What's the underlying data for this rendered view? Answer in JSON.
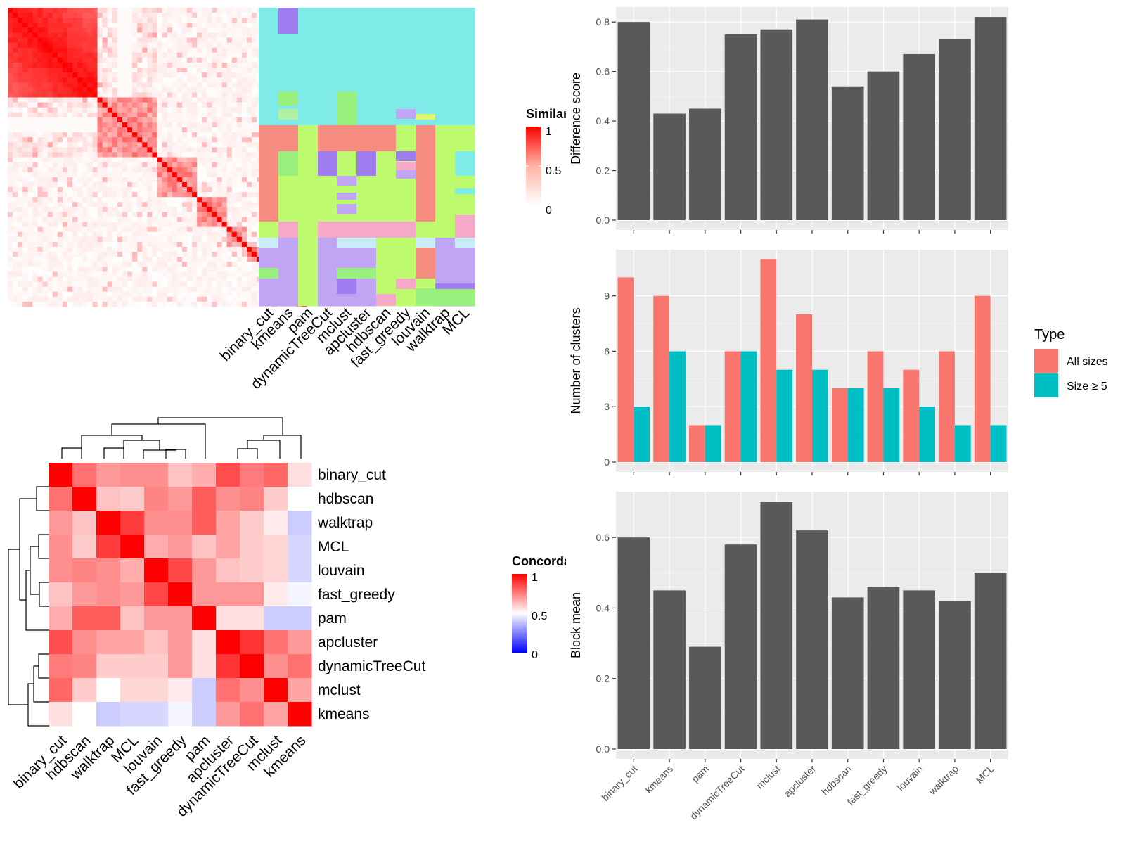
{
  "methods_order": [
    "binary_cut",
    "kmeans",
    "pam",
    "dynamicTreeCut",
    "mclust",
    "apcluster",
    "hdbscan",
    "fast_greedy",
    "louvain",
    "walktrap",
    "MCL"
  ],
  "similarity_heatmap": {
    "legend_title": "Similarity",
    "legend_ticks": [
      "1",
      "0.5",
      "0"
    ],
    "column_labels": [
      "binary_cut",
      "kmeans",
      "pam",
      "dynamicTreeCut",
      "mclust",
      "apcluster",
      "hdbscan",
      "fast_greedy",
      "louvain",
      "walktrap",
      "MCL"
    ]
  },
  "concordance_heatmap": {
    "legend_title": "Concordance",
    "legend_ticks": [
      "1",
      "0.5",
      "0"
    ],
    "row_labels": [
      "binary_cut",
      "hdbscan",
      "walktrap",
      "MCL",
      "louvain",
      "fast_greedy",
      "pam",
      "apcluster",
      "dynamicTreeCut",
      "mclust",
      "kmeans"
    ],
    "col_labels": [
      "binary_cut",
      "hdbscan",
      "walktrap",
      "MCL",
      "louvain",
      "fast_greedy",
      "pam",
      "apcluster",
      "dynamicTreeCut",
      "mclust",
      "kmeans"
    ],
    "values": [
      [
        1.0,
        0.78,
        0.7,
        0.72,
        0.72,
        0.62,
        0.66,
        0.85,
        0.76,
        0.8,
        0.56
      ],
      [
        0.78,
        1.0,
        0.62,
        0.6,
        0.74,
        0.7,
        0.82,
        0.72,
        0.74,
        0.6,
        0.5
      ],
      [
        0.7,
        0.62,
        1.0,
        0.88,
        0.72,
        0.72,
        0.82,
        0.68,
        0.6,
        0.54,
        0.4
      ],
      [
        0.72,
        0.6,
        0.88,
        1.0,
        0.66,
        0.7,
        0.62,
        0.68,
        0.6,
        0.58,
        0.42
      ],
      [
        0.72,
        0.74,
        0.72,
        0.66,
        1.0,
        0.86,
        0.7,
        0.62,
        0.6,
        0.58,
        0.42
      ],
      [
        0.62,
        0.7,
        0.72,
        0.7,
        0.86,
        1.0,
        0.7,
        0.7,
        0.7,
        0.54,
        0.48
      ],
      [
        0.66,
        0.82,
        0.82,
        0.62,
        0.7,
        0.7,
        1.0,
        0.56,
        0.56,
        0.4,
        0.4
      ],
      [
        0.85,
        0.72,
        0.68,
        0.68,
        0.62,
        0.7,
        0.56,
        1.0,
        0.9,
        0.78,
        0.7
      ],
      [
        0.76,
        0.74,
        0.6,
        0.6,
        0.6,
        0.7,
        0.56,
        0.9,
        1.0,
        0.72,
        0.78
      ],
      [
        0.8,
        0.6,
        0.5,
        0.58,
        0.58,
        0.54,
        0.4,
        0.78,
        0.72,
        1.0,
        0.68
      ],
      [
        0.56,
        0.5,
        0.4,
        0.42,
        0.42,
        0.48,
        0.4,
        0.7,
        0.78,
        0.68,
        1.0
      ]
    ]
  },
  "type_legend": {
    "title": "Type",
    "items": [
      {
        "label": "All sizes",
        "color": "#F8766D"
      },
      {
        "label": "Size ≥ 5",
        "color": "#00BFC4"
      }
    ]
  },
  "chart_data": [
    {
      "type": "bar",
      "categories": [
        "binary_cut",
        "kmeans",
        "pam",
        "dynamicTreeCut",
        "mclust",
        "apcluster",
        "hdbscan",
        "fast_greedy",
        "louvain",
        "walktrap",
        "MCL"
      ],
      "values": [
        0.8,
        0.43,
        0.45,
        0.75,
        0.77,
        0.81,
        0.54,
        0.6,
        0.67,
        0.73,
        0.82
      ],
      "ylabel": "Difference score",
      "xlabel": "",
      "ylim": [
        0,
        0.86
      ],
      "yticks": [
        "0.0",
        "0.2",
        "0.4",
        "0.6",
        "0.8"
      ],
      "ytick_values": [
        0,
        0.2,
        0.4,
        0.6,
        0.8
      ],
      "bar_color": "#595959"
    },
    {
      "type": "bar",
      "categories": [
        "binary_cut",
        "kmeans",
        "pam",
        "dynamicTreeCut",
        "mclust",
        "apcluster",
        "hdbscan",
        "fast_greedy",
        "louvain",
        "walktrap",
        "MCL"
      ],
      "series": [
        {
          "name": "All sizes",
          "values": [
            10,
            9,
            2,
            6,
            11,
            8,
            4,
            6,
            5,
            6,
            9
          ],
          "color": "#F8766D"
        },
        {
          "name": "Size ≥ 5",
          "values": [
            3,
            6,
            2,
            6,
            5,
            5,
            4,
            4,
            3,
            2,
            2
          ],
          "color": "#00BFC4"
        }
      ],
      "ylabel": "Number of clusters",
      "xlabel": "",
      "ylim": [
        0,
        11.5
      ],
      "yticks": [
        "0",
        "3",
        "6",
        "9"
      ],
      "ytick_values": [
        0,
        3,
        6,
        9
      ]
    },
    {
      "type": "bar",
      "categories": [
        "binary_cut",
        "kmeans",
        "pam",
        "dynamicTreeCut",
        "mclust",
        "apcluster",
        "hdbscan",
        "fast_greedy",
        "louvain",
        "walktrap",
        "MCL"
      ],
      "values": [
        0.6,
        0.45,
        0.29,
        0.58,
        0.7,
        0.62,
        0.43,
        0.46,
        0.45,
        0.42,
        0.5
      ],
      "ylabel": "Block mean",
      "xlabel": "",
      "ylim": [
        0,
        0.73
      ],
      "yticks": [
        "0.0",
        "0.2",
        "0.4",
        "0.6"
      ],
      "ytick_values": [
        0,
        0.2,
        0.4,
        0.6
      ],
      "bar_color": "#595959"
    }
  ]
}
